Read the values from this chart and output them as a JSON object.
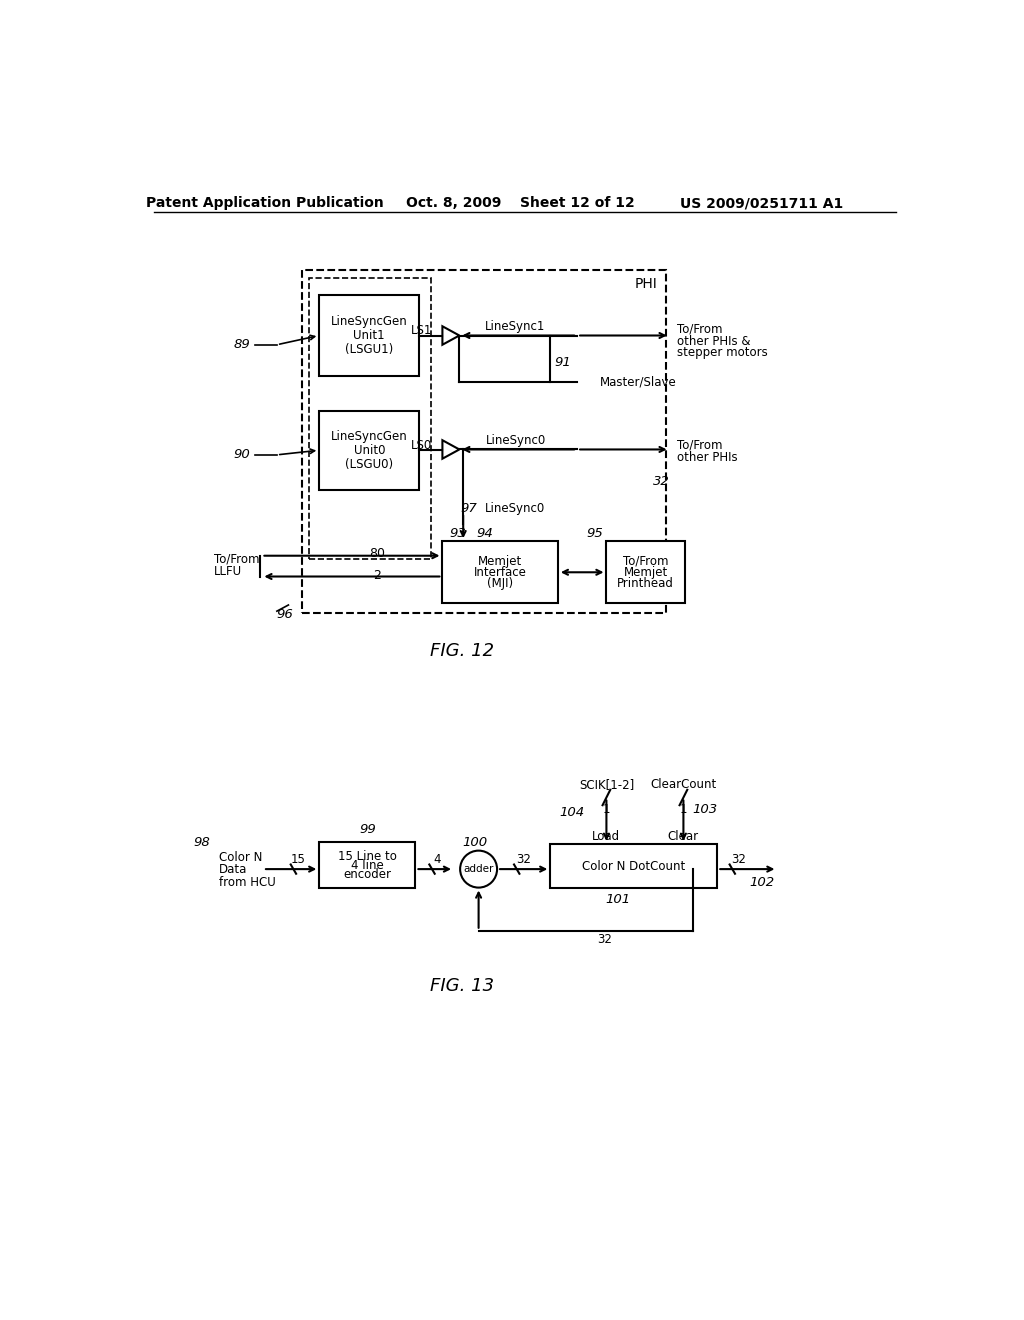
{
  "bg_color": "#ffffff",
  "header_text": "Patent Application Publication",
  "header_date": "Oct. 8, 2009",
  "header_sheet": "Sheet 12 of 12",
  "header_patent": "US 2009/0251711 A1",
  "fig12_label": "FIG. 12",
  "fig13_label": "FIG. 13"
}
